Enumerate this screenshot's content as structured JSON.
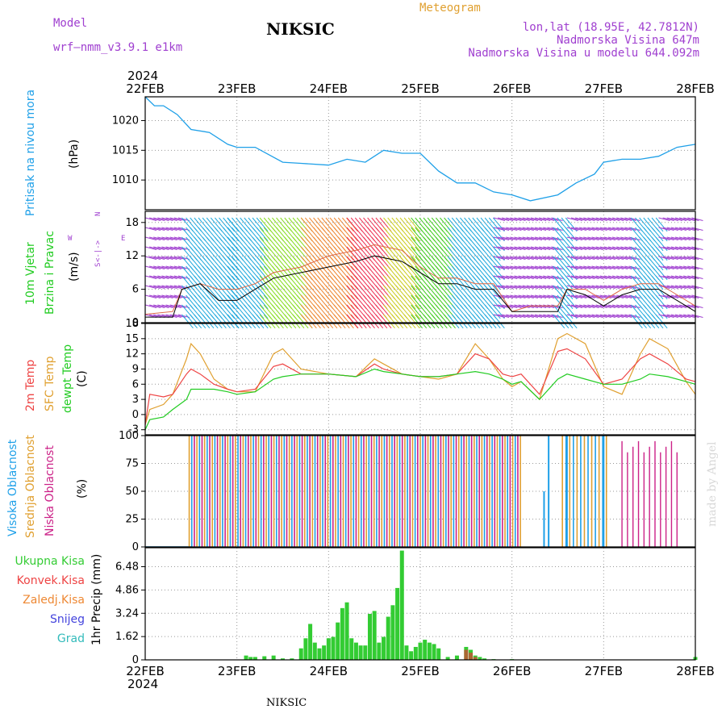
{
  "header": {
    "model_label": "Model",
    "model_name": "wrf–nmm_v3.9.1  e1km",
    "station": "NIKSIC",
    "product": "Meteogram",
    "lonlat": "lon,lat (18.95E, 42.7812N)",
    "elev": "Nadmorska Visina 647m",
    "elev_model": "Nadmorska Visina u modelu 644.092m",
    "year": "2024",
    "footer_station": "NIKSIC",
    "credit": "made by Angel"
  },
  "dates": [
    "22FEB",
    "23FEB",
    "24FEB",
    "25FEB",
    "26FEB",
    "27FEB",
    "28FEB"
  ],
  "colors": {
    "pressure": "#1fa0e8",
    "wind_label": "#22cc22",
    "wind_purple": "#a040d0",
    "temp2m": "#ee4444",
    "sfc": "#e0a030",
    "dewpt": "#22cc22",
    "high_cloud": "#1fa0e8",
    "mid_cloud": "#e0a030",
    "low_cloud": "#cc2288",
    "precip": "#33cc33",
    "conv": "#ee4444",
    "frozen": "#ee8833",
    "snow": "#4444dd",
    "hail": "#33bbbb"
  },
  "panels": {
    "pressure": {
      "label": "Pritisak na nivou mora",
      "unit": "(hPa)"
    },
    "wind": {
      "label1": "10m Vjetar",
      "label2": "Brzina i Pravac",
      "unit": "(m/s)",
      "compass_w": "W",
      "compass_e": "E",
      "compass_arrow": "<-|->",
      "compass_n": "N",
      "compass_s": "S"
    },
    "temp": {
      "label1": "2m Temp",
      "label2": "SFC Temp",
      "label3": "dewpt Temp",
      "unit": "(C)"
    },
    "cloud": {
      "label1": "Visoka Oblacnost",
      "label2": "Srednja Oblacnost",
      "label3": "Niska Oblacnost",
      "unit": "(%)"
    },
    "precip": {
      "labels": [
        "Ukupna Kisa",
        "Konvek.Kisa",
        "Zaledj.Kisa",
        "Snijeg",
        "Grad"
      ],
      "unit": "1hr Precip (mm)"
    }
  },
  "chart_data": [
    {
      "type": "line",
      "name": "pressure",
      "ylabel": "(hPa)",
      "yticks": [
        1010,
        1015,
        1020
      ],
      "ylim": [
        1005,
        1024
      ],
      "x": [
        0,
        0.1,
        0.2,
        0.35,
        0.5,
        0.7,
        0.9,
        1.0,
        1.2,
        1.5,
        1.7,
        2.0,
        2.2,
        2.4,
        2.6,
        2.8,
        3.0,
        3.2,
        3.4,
        3.6,
        3.8,
        4.0,
        4.2,
        4.5,
        4.7,
        4.9,
        5.0,
        5.2,
        5.4,
        5.6,
        5.8,
        6.0
      ],
      "series": [
        {
          "values": [
            1024,
            1022.5,
            1022.5,
            1021,
            1018.5,
            1018,
            1016,
            1015.5,
            1015.5,
            1013,
            1012.8,
            1012.5,
            1013.5,
            1013,
            1015,
            1014.5,
            1014.5,
            1011.5,
            1009.5,
            1009.5,
            1008,
            1007.5,
            1006.5,
            1007.5,
            1009.5,
            1011,
            1013,
            1013.5,
            1013.5,
            1014,
            1015.5,
            1016
          ]
        }
      ]
    },
    {
      "type": "line",
      "name": "wind",
      "ylabel": "(m/s)",
      "yticks": [
        0,
        6,
        12,
        18
      ],
      "ylim": [
        0,
        20
      ],
      "x": [
        0,
        0.3,
        0.4,
        0.6,
        0.8,
        1.0,
        1.2,
        1.4,
        1.7,
        2.0,
        2.3,
        2.5,
        2.8,
        3.0,
        3.2,
        3.4,
        3.6,
        3.8,
        4.0,
        4.2,
        4.4,
        4.5,
        4.6,
        4.8,
        5.0,
        5.2,
        5.4,
        5.6,
        5.8,
        6.0
      ],
      "series": [
        {
          "values": [
            1,
            1,
            6,
            7,
            4,
            4,
            6,
            8,
            9,
            10,
            11,
            12,
            11,
            9,
            7,
            7,
            6,
            6,
            2,
            2,
            2,
            2,
            6,
            5,
            3,
            5,
            6,
            6,
            4,
            2
          ]
        },
        {
          "values": [
            1.5,
            2,
            6,
            7,
            6,
            6,
            7,
            9,
            10,
            12,
            13,
            14,
            13,
            10,
            8,
            8,
            7,
            7,
            2,
            3,
            3,
            3,
            6,
            6,
            4,
            6,
            7,
            7,
            5,
            3
          ]
        }
      ]
    },
    {
      "type": "line",
      "name": "temperature",
      "ylabel": "(C)",
      "yticks": [
        -3,
        0,
        3,
        6,
        9,
        12,
        15,
        18
      ],
      "ylim": [
        -4,
        18
      ],
      "x": [
        0,
        0.05,
        0.2,
        0.3,
        0.45,
        0.5,
        0.6,
        0.75,
        0.9,
        1.0,
        1.2,
        1.4,
        1.5,
        1.7,
        2.0,
        2.3,
        2.5,
        2.6,
        2.8,
        3.0,
        3.2,
        3.4,
        3.6,
        3.75,
        3.9,
        4.0,
        4.1,
        4.3,
        4.5,
        4.6,
        4.8,
        5.0,
        5.2,
        5.4,
        5.5,
        5.7,
        5.9,
        6.0
      ],
      "series": [
        {
          "name": "2m Temp",
          "values": [
            -2,
            4,
            3.5,
            4,
            8,
            9,
            8,
            6,
            5,
            4.5,
            5,
            9.5,
            10,
            8,
            8,
            7.5,
            10,
            9,
            8,
            7.5,
            7.5,
            8,
            12,
            11,
            8,
            7.5,
            8,
            4,
            12.5,
            13,
            11,
            6,
            7,
            11,
            12,
            10,
            7,
            6.5
          ]
        },
        {
          "name": "SFC Temp",
          "values": [
            -2,
            1,
            2,
            4,
            11,
            14,
            12,
            7,
            5,
            4.5,
            4.5,
            12,
            13,
            9,
            8,
            7.5,
            11,
            10,
            8,
            7.5,
            7,
            8,
            14,
            11,
            7,
            5.5,
            6.5,
            3,
            15,
            16,
            14,
            5.5,
            4,
            12,
            15,
            13,
            6.5,
            4
          ]
        },
        {
          "name": "dewpt Temp",
          "values": [
            -3,
            -1,
            -0.5,
            1,
            3,
            5,
            5,
            5,
            4.5,
            4,
            4.5,
            7,
            7.5,
            8,
            8,
            7.5,
            9,
            8.5,
            8,
            7.5,
            7.5,
            8,
            8.5,
            8,
            7,
            6,
            6.5,
            3,
            7,
            8,
            7,
            6,
            6,
            7,
            8,
            7.5,
            6.5,
            6
          ]
        }
      ]
    },
    {
      "type": "bar",
      "name": "cloud cover",
      "ylabel": "(%)",
      "yticks": [
        0,
        25,
        50,
        75,
        100
      ],
      "ylim": [
        0,
        100
      ],
      "series": [
        {
          "name": "Visoka Oblacnost",
          "values_note": ""
        },
        {
          "name": "Srednja Oblacnost"
        },
        {
          "name": "Niska Oblacnost"
        }
      ]
    },
    {
      "type": "bar",
      "name": "1hr precipitation",
      "ylabel": "1hr Precip (mm)",
      "yticks": [
        0,
        1.62,
        3.24,
        4.86,
        6.48
      ],
      "ylim": [
        0,
        7.8
      ],
      "x": [
        1.1,
        1.15,
        1.2,
        1.3,
        1.4,
        1.5,
        1.6,
        1.7,
        1.75,
        1.8,
        1.85,
        1.9,
        1.95,
        2.0,
        2.05,
        2.1,
        2.15,
        2.2,
        2.25,
        2.3,
        2.35,
        2.4,
        2.45,
        2.5,
        2.55,
        2.6,
        2.65,
        2.7,
        2.75,
        2.8,
        2.85,
        2.9,
        2.95,
        3.0,
        3.05,
        3.1,
        3.15,
        3.2,
        3.3,
        3.4,
        3.5,
        3.55,
        3.6,
        3.65,
        3.7,
        3.8,
        4.0,
        6.0
      ],
      "series": [
        {
          "name": "Ukupna Kisa",
          "values": [
            0.3,
            0.2,
            0.2,
            0.25,
            0.3,
            0.1,
            0.1,
            0.8,
            1.5,
            2.5,
            1.2,
            0.8,
            1.0,
            1.5,
            1.6,
            2.6,
            3.6,
            4.0,
            1.5,
            1.2,
            1.0,
            1.0,
            3.2,
            3.4,
            1.2,
            1.6,
            3.0,
            3.8,
            5.0,
            7.6,
            1.0,
            0.6,
            0.9,
            1.2,
            1.4,
            1.2,
            1.1,
            0.8,
            0.2,
            0.3,
            0.9,
            0.7,
            0.3,
            0.2,
            0.1,
            0.05,
            0.05,
            0.2
          ]
        },
        {
          "name": "Konvek.Kisa",
          "values": [
            0,
            0,
            0,
            0,
            0,
            0,
            0,
            0,
            0,
            0,
            0,
            0,
            0,
            0,
            0,
            0,
            0,
            0,
            0,
            0,
            0,
            0,
            0,
            0,
            0,
            0,
            0,
            0,
            0,
            0,
            0,
            0,
            0,
            0,
            0,
            0,
            0,
            0,
            0,
            0,
            0.7,
            0.5,
            0.2,
            0,
            0,
            0,
            0,
            0
          ]
        }
      ]
    }
  ]
}
